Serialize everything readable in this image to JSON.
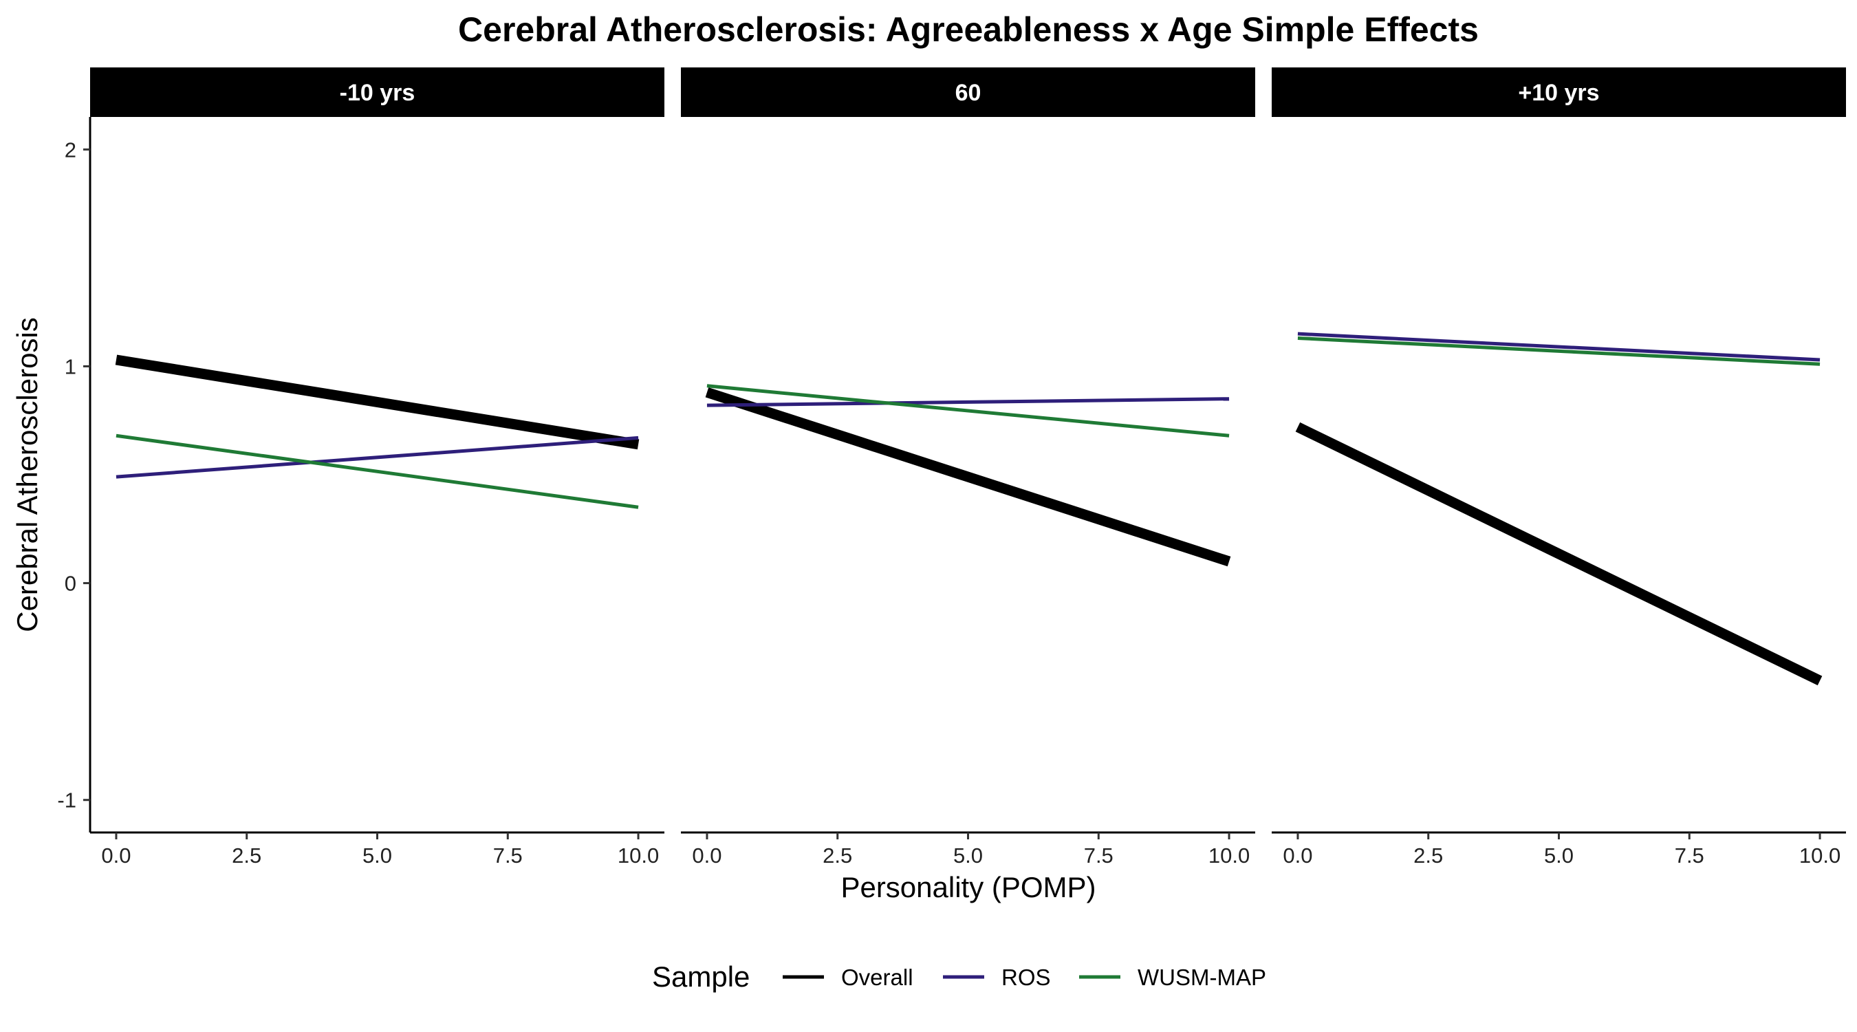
{
  "chart_data": {
    "type": "line",
    "title": "Cerebral Atherosclerosis: Agreeableness x Age Simple Effects",
    "xlabel": "Personality (POMP)",
    "ylabel": "Cerebral Atherosclerosis",
    "xlim": [
      -0.5,
      10.5
    ],
    "ylim": [
      -1.15,
      2.15
    ],
    "x_ticks": [
      0,
      2.5,
      5,
      7.5,
      10
    ],
    "x_tick_labels": [
      "0.0",
      "2.5",
      "5.0",
      "7.5",
      "10.0"
    ],
    "y_ticks": [
      -1,
      0,
      1,
      2
    ],
    "y_tick_labels": [
      "-1",
      "0",
      "1",
      "2"
    ],
    "legend": {
      "title": "Sample",
      "position": "bottom",
      "entries": [
        {
          "label": "Overall",
          "color": "#000000"
        },
        {
          "label": "ROS",
          "color": "#2e1f7a"
        },
        {
          "label": "WUSM-MAP",
          "color": "#1f7a35"
        }
      ]
    },
    "panels": [
      {
        "label": "-10 yrs",
        "series": [
          {
            "name": "Overall",
            "x": [
              0,
              10
            ],
            "y": [
              1.03,
              0.64
            ]
          },
          {
            "name": "ROS",
            "x": [
              0,
              10
            ],
            "y": [
              0.49,
              0.67
            ]
          },
          {
            "name": "WUSM-MAP",
            "x": [
              0,
              10
            ],
            "y": [
              0.68,
              0.35
            ]
          }
        ]
      },
      {
        "label": "60",
        "series": [
          {
            "name": "Overall",
            "x": [
              0,
              10
            ],
            "y": [
              0.88,
              0.1
            ]
          },
          {
            "name": "ROS",
            "x": [
              0,
              10
            ],
            "y": [
              0.82,
              0.85
            ]
          },
          {
            "name": "WUSM-MAP",
            "x": [
              0,
              10
            ],
            "y": [
              0.91,
              0.68
            ]
          }
        ]
      },
      {
        "label": "+10 yrs",
        "series": [
          {
            "name": "Overall",
            "x": [
              0,
              10
            ],
            "y": [
              0.72,
              -0.45
            ]
          },
          {
            "name": "ROS",
            "x": [
              0,
              10
            ],
            "y": [
              1.15,
              1.03
            ]
          },
          {
            "name": "WUSM-MAP",
            "x": [
              0,
              10
            ],
            "y": [
              1.13,
              1.01
            ]
          }
        ]
      }
    ]
  }
}
